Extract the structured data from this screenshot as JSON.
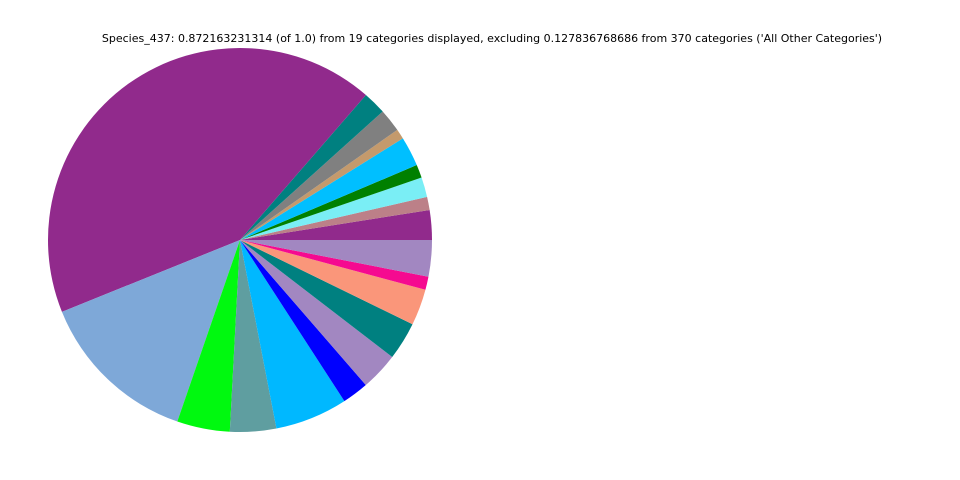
{
  "chart_data": {
    "type": "pie",
    "title": "Species_437: 0.872163231314 (of 1.0) from 19 categories displayed, excluding 0.127836768686 from 370 categories ('All Other Categories')",
    "values": [
      0.0218,
      0.0097,
      0.0145,
      0.0097,
      0.0218,
      0.0073,
      0.017,
      0.017,
      0.3707,
      0.1187,
      0.0388,
      0.0339,
      0.0533,
      0.0194,
      0.0279,
      0.0279,
      0.0267,
      0.0097,
      0.0267
    ],
    "colors": [
      "#912a8c",
      "#bc8088",
      "#7aeef5",
      "#008000",
      "#00bfff",
      "#c49a6c",
      "#808080",
      "#008080",
      "#912a8c",
      "#7ea8d8",
      "#00f90f",
      "#5f9ea0",
      "#00b8ff",
      "#0000ff",
      "#a287c1",
      "#008080",
      "#fa967a",
      "#f50a90",
      "#a287c1"
    ]
  }
}
